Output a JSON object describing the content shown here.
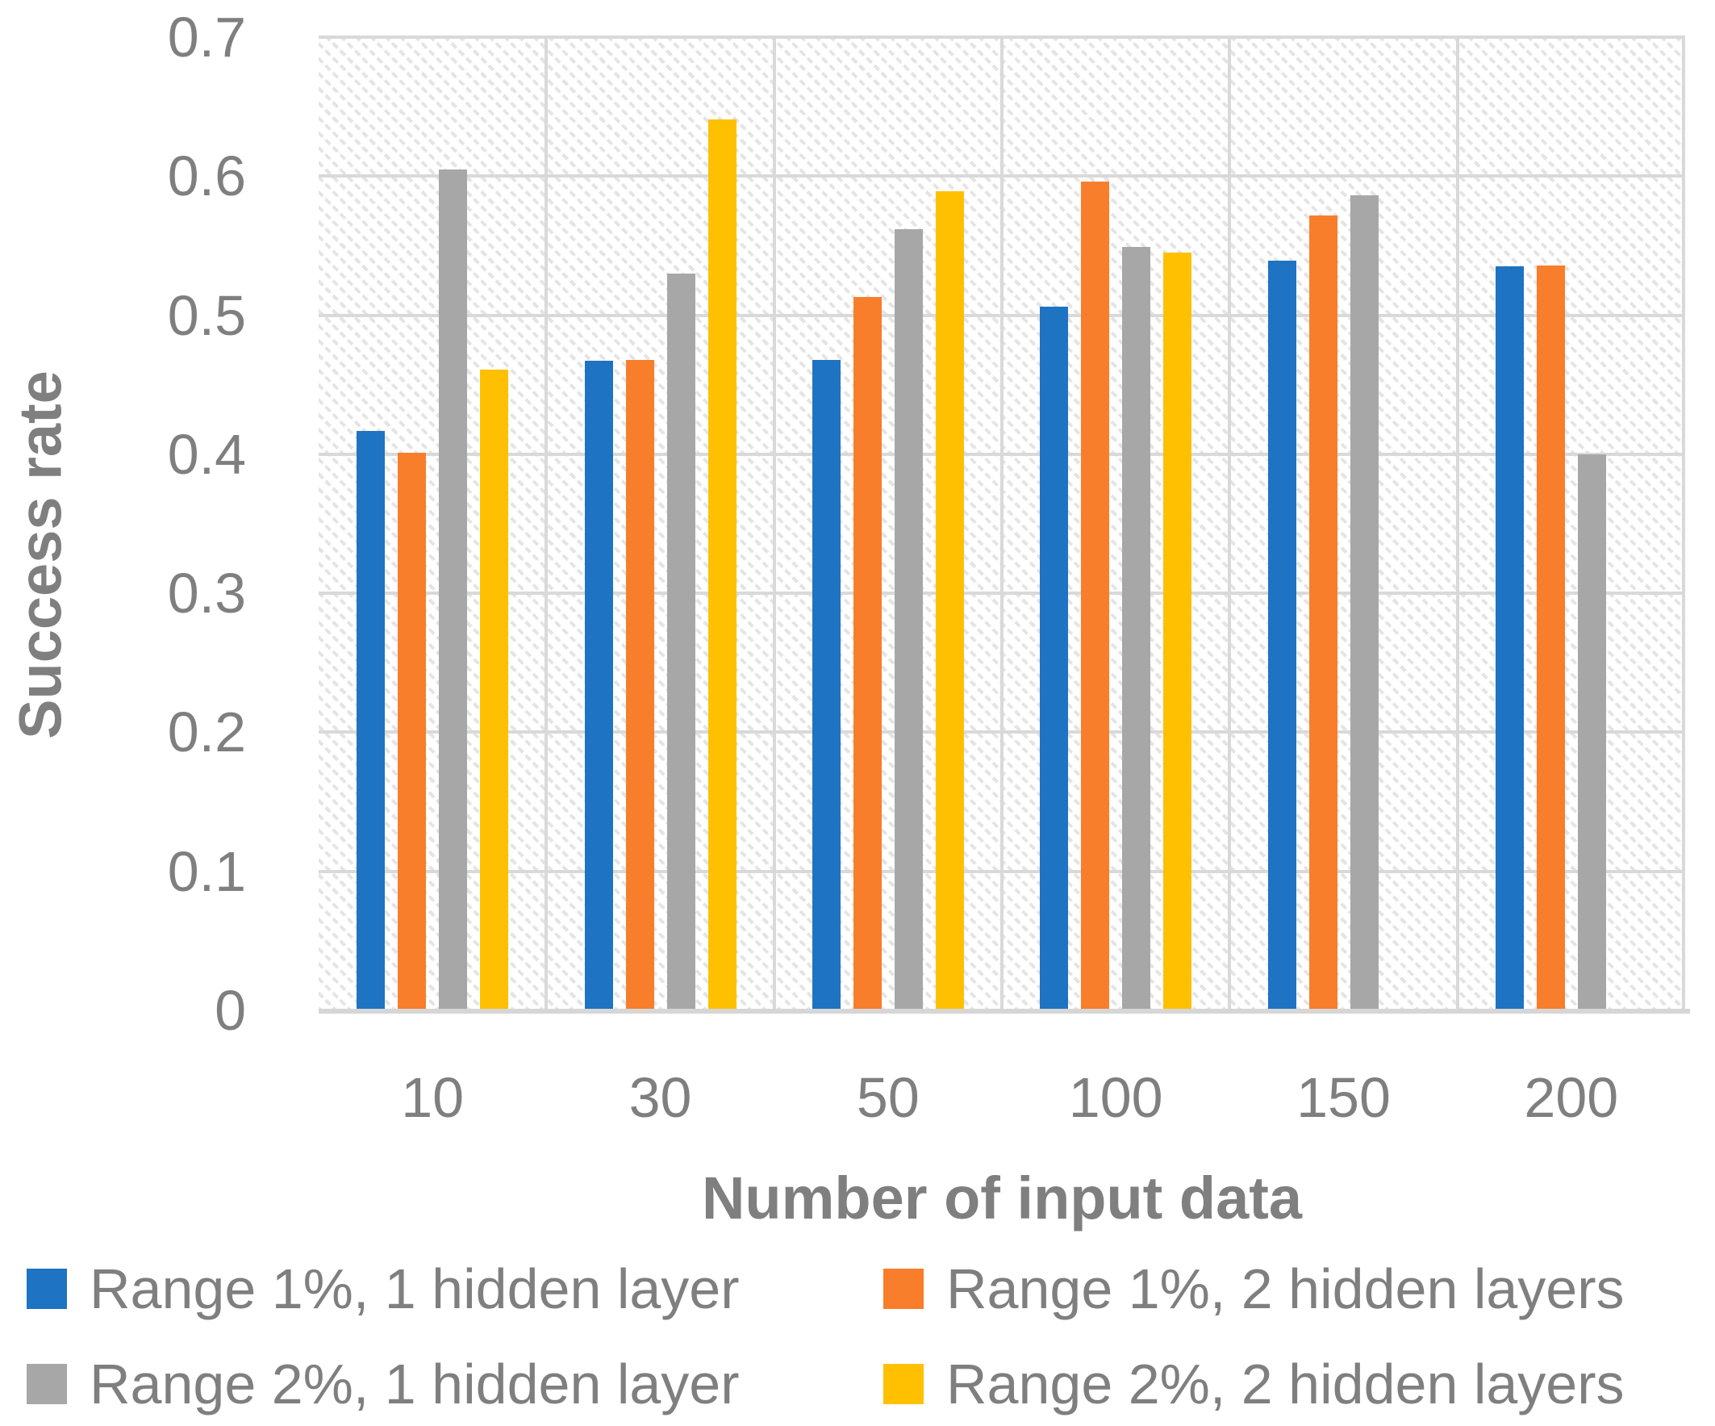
{
  "chart_data": {
    "type": "bar",
    "title": "",
    "xlabel": "Number of input data",
    "ylabel": "Success rate",
    "categories": [
      "10",
      "30",
      "50",
      "100",
      "150",
      "200"
    ],
    "series": [
      {
        "name": "Range 1%, 1 hidden layer",
        "color": "#1E73C2",
        "values": [
          0.417,
          0.467,
          0.468,
          0.506,
          0.539,
          0.535
        ]
      },
      {
        "name": "Range 1%, 2 hidden layers",
        "color": "#F87E2B",
        "values": [
          0.401,
          0.468,
          0.513,
          0.596,
          0.572,
          0.536
        ]
      },
      {
        "name": "Range 2%, 1 hidden layer",
        "color": "#A7A7A7",
        "values": [
          0.605,
          0.53,
          0.562,
          0.549,
          0.586,
          0.4
        ]
      },
      {
        "name": "Range 2%, 2 hidden layers",
        "color": "#FFC002",
        "values": [
          0.461,
          0.641,
          0.589,
          0.545,
          null,
          null
        ]
      }
    ],
    "ylim": [
      0,
      0.7
    ],
    "ytick_labels": [
      "0.7",
      "0.6",
      "0.5",
      "0.4",
      "0.3",
      "0.2",
      "0.1",
      "0"
    ],
    "grid": true,
    "legend_position": "bottom",
    "plot_background": "diagonal-hatch"
  },
  "colors": {
    "gridline": "#d9d9d9",
    "axis_line": "#d6d6d6",
    "text": "#7f7f7f",
    "hatch": "#e4e4e4",
    "background": "#ffffff"
  }
}
